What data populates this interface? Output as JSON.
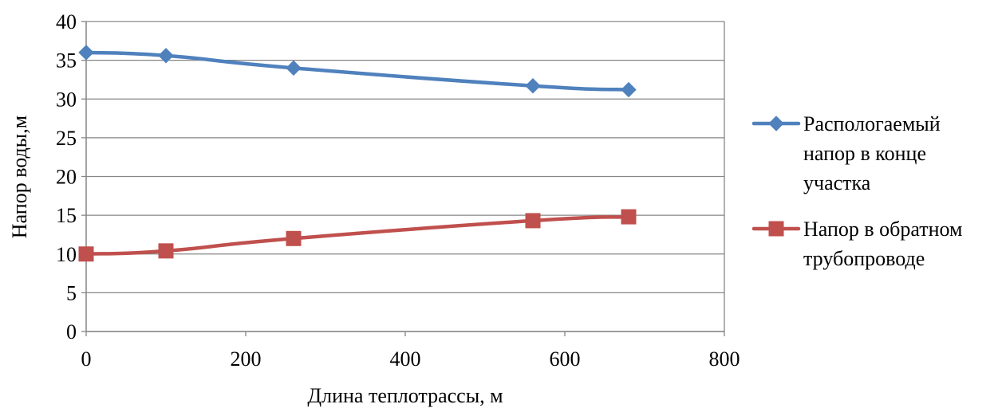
{
  "chart_data": {
    "type": "line",
    "title": "",
    "xlabel": "Длина теплотрассы, м",
    "ylabel": "Напор воды,м",
    "xlim": [
      0,
      800
    ],
    "ylim": [
      0,
      40
    ],
    "xticks": [
      0,
      200,
      400,
      600,
      800
    ],
    "yticks": [
      0,
      5,
      10,
      15,
      20,
      25,
      30,
      35,
      40
    ],
    "grid": "horizontal",
    "legend_position": "right",
    "series": [
      {
        "name": "Распологаемый напор в конце участка",
        "name_lines": [
          "Распологаемый",
          "напор в конце",
          "участка"
        ],
        "color": "#4F81BD",
        "marker": "diamond",
        "x": [
          0,
          100,
          260,
          560,
          680
        ],
        "y": [
          36,
          35.6,
          34,
          31.7,
          31.2
        ]
      },
      {
        "name": "Напор в обратном трубопроводе",
        "name_lines": [
          "Напор в обратном",
          "трубопроводе"
        ],
        "color": "#C0504D",
        "marker": "square",
        "x": [
          0,
          100,
          260,
          560,
          680
        ],
        "y": [
          10,
          10.4,
          12,
          14.3,
          14.8
        ]
      }
    ]
  }
}
